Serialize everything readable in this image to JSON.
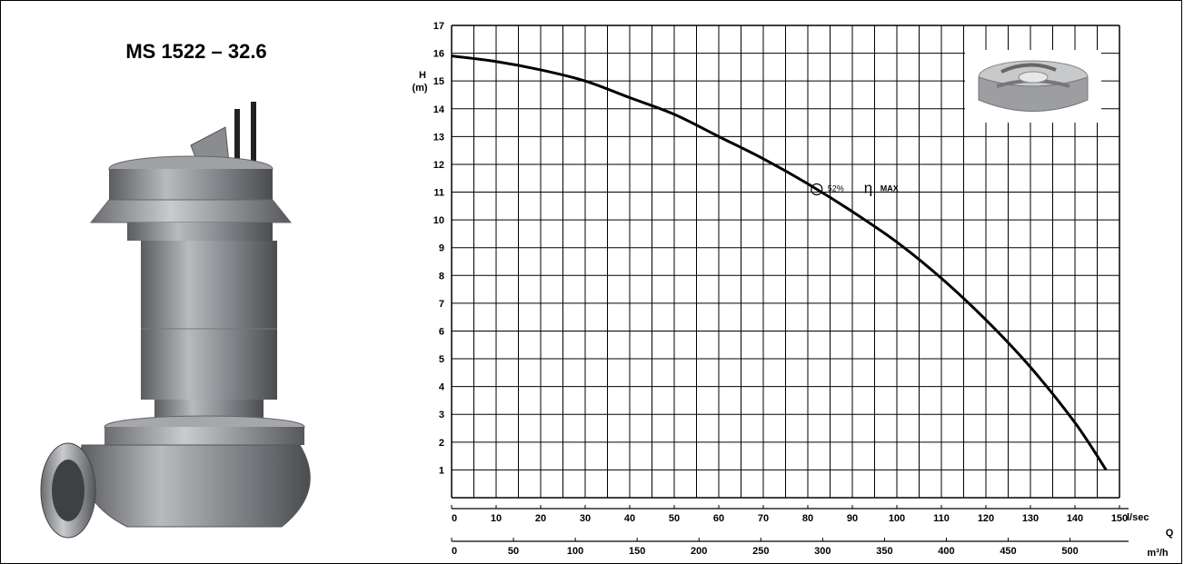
{
  "model_title": "MS 1522 – 32.6",
  "chart_data": {
    "type": "line",
    "title": "",
    "ylabel": "H (m)",
    "ylabel_lines": [
      "H",
      "(m)"
    ],
    "ylim": [
      0,
      17
    ],
    "y_ticks": [
      "1",
      "2",
      "3",
      "4",
      "5",
      "6",
      "7",
      "8",
      "9",
      "10",
      "11",
      "12",
      "13",
      "14",
      "15",
      "16",
      "17"
    ],
    "x_primary": {
      "unit": "l/sec",
      "ticks": [
        "0",
        "10",
        "20",
        "30",
        "40",
        "50",
        "60",
        "70",
        "80",
        "90",
        "100",
        "110",
        "120",
        "130",
        "140",
        "150"
      ],
      "range": [
        0,
        150
      ]
    },
    "x_secondary": {
      "label": "Q",
      "unit": "m³/h",
      "ticks": [
        "0",
        "50",
        "100",
        "150",
        "200",
        "250",
        "300",
        "350",
        "400",
        "450",
        "500"
      ]
    },
    "grid": true,
    "series": [
      {
        "x": [
          0,
          10,
          20,
          30,
          40,
          50,
          60,
          70,
          80,
          90,
          100,
          110,
          120,
          130,
          140,
          147
        ],
        "y": [
          15.9,
          15.7,
          15.4,
          15.0,
          14.4,
          13.8,
          13.0,
          12.2,
          11.3,
          10.3,
          9.2,
          7.9,
          6.4,
          4.7,
          2.7,
          1.0
        ]
      }
    ],
    "annotations": [
      {
        "x": 82,
        "y": 11.1,
        "label": "52%",
        "symbol": "η",
        "symbol_note": "MAX"
      }
    ]
  },
  "impeller_image": "impeller-icon",
  "pump_image": "submersible-pump"
}
